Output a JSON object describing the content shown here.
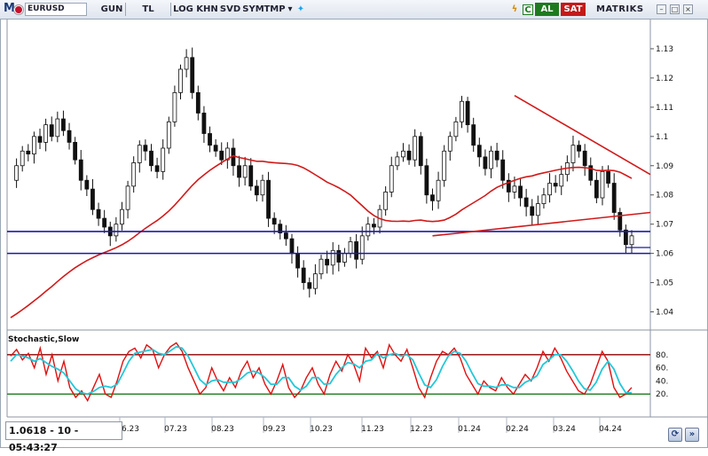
{
  "toolbar": {
    "logo": "M",
    "symbol": "EURUSD",
    "buttons": [
      "GUN",
      "TL",
      "LOG",
      "KHN",
      "SVD",
      "SYM",
      "TMP"
    ],
    "dropdown_icon": "chevron-down-icon",
    "social_icon": "twitter-icon",
    "c_button": "C",
    "buy_label": "AL",
    "sell_label": "SAT",
    "brand": "MATRIKS",
    "colors": {
      "buy": "#1f7a1f",
      "sell": "#c41a1a"
    }
  },
  "status_text": "1.0618 - 10 - 05:43:27",
  "indicator_label": "Stochastic,Slow",
  "chart_data": [
    {
      "type": "candlestick",
      "symbol": "EURUSD",
      "x_tick_labels": [
        "6.23",
        "07.23",
        "08.23",
        "09.23",
        "10.23",
        "11.23",
        "12.23",
        "01.24",
        "02.24",
        "03.24",
        "04.24"
      ],
      "y_tick_labels": [
        "1.04",
        "1.05",
        "1.06",
        "1.07",
        "1.08",
        "1.09",
        "1.1",
        "1.11",
        "1.12",
        "1.13"
      ],
      "ylim": [
        1.035,
        1.14
      ],
      "close_series": [
        1.085,
        1.09,
        1.095,
        1.094,
        1.1,
        1.098,
        1.104,
        1.1,
        1.106,
        1.102,
        1.098,
        1.092,
        1.085,
        1.082,
        1.075,
        1.072,
        1.069,
        1.066,
        1.07,
        1.075,
        1.083,
        1.091,
        1.097,
        1.095,
        1.09,
        1.088,
        1.096,
        1.105,
        1.115,
        1.123,
        1.127,
        1.115,
        1.108,
        1.101,
        1.097,
        1.095,
        1.092,
        1.096,
        1.09,
        1.086,
        1.09,
        1.083,
        1.08,
        1.085,
        1.072,
        1.07,
        1.067,
        1.065,
        1.06,
        1.055,
        1.05,
        1.048,
        1.053,
        1.058,
        1.056,
        1.061,
        1.057,
        1.06,
        1.064,
        1.058,
        1.066,
        1.07,
        1.069,
        1.075,
        1.081,
        1.09,
        1.093,
        1.095,
        1.092,
        1.1,
        1.09,
        1.08,
        1.078,
        1.085,
        1.095,
        1.1,
        1.105,
        1.112,
        1.104,
        1.097,
        1.093,
        1.089,
        1.095,
        1.092,
        1.085,
        1.081,
        1.083,
        1.079,
        1.076,
        1.073,
        1.077,
        1.08,
        1.084,
        1.083,
        1.087,
        1.091,
        1.097,
        1.095,
        1.09,
        1.085,
        1.079,
        1.088,
        1.084,
        1.074,
        1.068,
        1.063,
        1.066
      ],
      "horizontal_lines": [
        {
          "value": 1.0675,
          "color": "#1a1aa8"
        },
        {
          "value": 1.06,
          "color": "#1a1aa8"
        }
      ],
      "moving_average": {
        "color": "#d11a1a"
      },
      "trendlines": [
        {
          "color": "#d11a1a",
          "from": [
            86,
            1.114
          ],
          "to": [
            118,
            1.087
          ]
        },
        {
          "color": "#d11a1a",
          "from": [
            72,
            1.066
          ],
          "to": [
            118,
            1.074
          ]
        }
      ]
    },
    {
      "type": "line",
      "title": "Stochastic,Slow",
      "y_tick_labels": [
        "20.",
        "40.",
        "60.",
        "80."
      ],
      "ylim": [
        0,
        100
      ],
      "reference_lines": [
        {
          "value": 80,
          "color": "#8b0000"
        },
        {
          "value": 20,
          "color": "#1a7a1a"
        }
      ],
      "series": [
        {
          "color": "#e01010",
          "values": [
            78,
            88,
            72,
            82,
            60,
            90,
            50,
            80,
            40,
            70,
            30,
            15,
            25,
            10,
            30,
            50,
            20,
            15,
            40,
            70,
            85,
            90,
            75,
            95,
            88,
            60,
            80,
            92,
            98,
            85,
            60,
            40,
            20,
            30,
            60,
            40,
            25,
            45,
            30,
            55,
            70,
            45,
            60,
            35,
            20,
            40,
            65,
            30,
            15,
            25,
            45,
            60,
            35,
            20,
            50,
            70,
            55,
            80,
            65,
            40,
            90,
            75,
            85,
            60,
            95,
            80,
            70,
            88,
            60,
            30,
            15,
            45,
            70,
            85,
            80,
            90,
            75,
            50,
            35,
            20,
            40,
            30,
            25,
            45,
            30,
            20,
            35,
            50,
            40,
            60,
            85,
            70,
            90,
            75,
            55,
            40,
            25,
            20,
            35,
            60,
            85,
            70,
            30,
            15,
            20,
            30
          ]
        },
        {
          "color": "#22c8d8",
          "values": [
            70,
            80,
            78,
            75,
            70,
            74,
            68,
            62,
            58,
            52,
            40,
            28,
            22,
            20,
            24,
            30,
            32,
            30,
            35,
            52,
            70,
            82,
            84,
            86,
            88,
            82,
            80,
            86,
            92,
            90,
            78,
            60,
            42,
            34,
            40,
            42,
            38,
            38,
            38,
            44,
            52,
            55,
            52,
            45,
            35,
            35,
            45,
            45,
            32,
            26,
            32,
            45,
            45,
            35,
            36,
            50,
            60,
            68,
            66,
            60,
            70,
            72,
            82,
            75,
            80,
            82,
            78,
            80,
            72,
            52,
            34,
            30,
            42,
            62,
            78,
            85,
            82,
            70,
            52,
            36,
            32,
            32,
            30,
            34,
            34,
            30,
            30,
            38,
            42,
            48,
            65,
            72,
            80,
            80,
            70,
            56,
            40,
            28,
            26,
            38,
            58,
            70,
            58,
            36,
            22,
            22
          ]
        }
      ]
    }
  ]
}
